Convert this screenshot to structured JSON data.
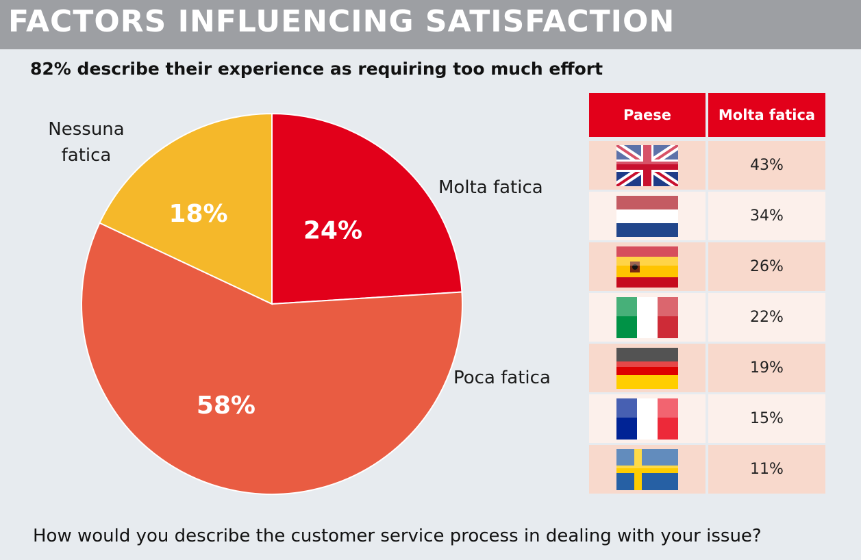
{
  "header": {
    "title": "FACTORS INFLUENCING SATISFACTION",
    "subtitle": "82% describe their experience as requiring too much effort",
    "question": "How would you describe the customer service process in dealing with your issue?"
  },
  "chart_data": [
    {
      "type": "pie",
      "slices": [
        {
          "label": "Molta fatica",
          "value": 24,
          "display": "24%",
          "color": "#e2001a"
        },
        {
          "label": "Poca fatica",
          "value": 58,
          "display": "58%",
          "color": "#e95c42"
        },
        {
          "label": "Nessuna fatica",
          "value": 18,
          "display": "18%",
          "color": "#f5b82a"
        }
      ]
    },
    {
      "type": "table",
      "columns": [
        "Paese",
        "Molta fatica"
      ],
      "rows": [
        {
          "flag": "uk-flag-icon",
          "value": "43%"
        },
        {
          "flag": "netherlands-flag-icon",
          "value": "34%"
        },
        {
          "flag": "spain-flag-icon",
          "value": "26%"
        },
        {
          "flag": "italy-flag-icon",
          "value": "22%"
        },
        {
          "flag": "germany-flag-icon",
          "value": "19%"
        },
        {
          "flag": "france-flag-icon",
          "value": "15%"
        },
        {
          "flag": "sweden-flag-icon",
          "value": "11%"
        }
      ]
    }
  ],
  "colors": {
    "header_bg": "#9d9fa3",
    "page_bg": "#e7ebef",
    "accent_red": "#e2001a",
    "row_even": "#f8d9cc",
    "row_odd": "#fcf0eb"
  }
}
